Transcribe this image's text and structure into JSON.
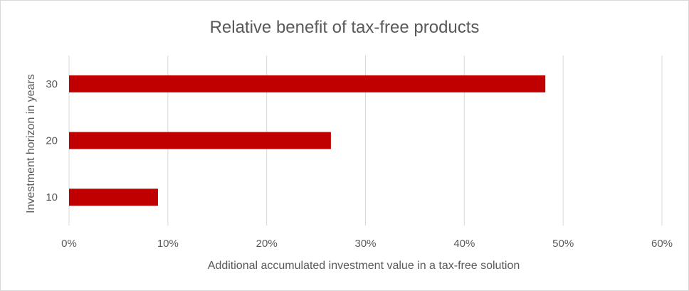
{
  "chart_data": {
    "type": "bar",
    "orientation": "horizontal",
    "title": "Relative benefit of tax-free products",
    "xlabel": "Additional accumulated investment value in a tax-free solution",
    "ylabel": "Investment horizon in years",
    "categories": [
      "30",
      "20",
      "10"
    ],
    "values": [
      0.482,
      0.265,
      0.09
    ],
    "xlim": [
      0,
      0.6
    ],
    "x_ticks": [
      "0%",
      "10%",
      "20%",
      "30%",
      "40%",
      "50%",
      "60%"
    ],
    "bar_color": "#c00000",
    "grid": true,
    "legend": "none"
  }
}
